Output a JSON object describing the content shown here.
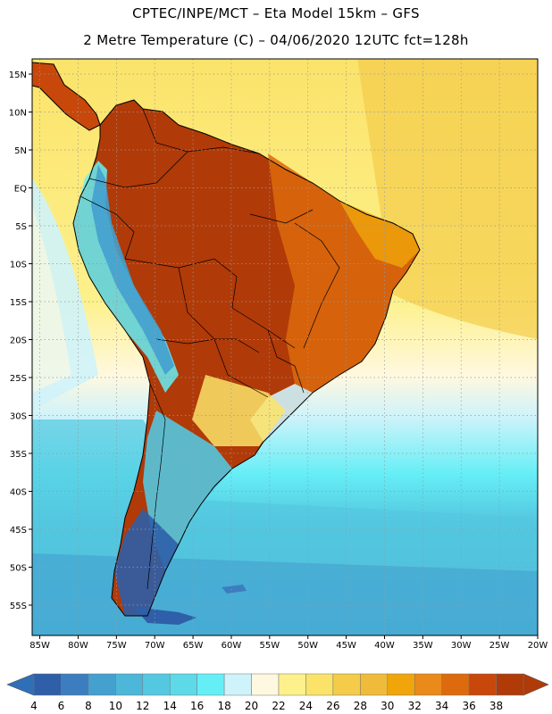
{
  "title": {
    "line1": "CPTEC/INPE/MCT  –   Eta Model 15km  –  GFS",
    "line2": "2 Metre Temperature (C)  –  04/06/2020  12UTC  fct=128h"
  },
  "map": {
    "lon_range": [
      -86,
      -20
    ],
    "lat_range": [
      -59,
      17
    ],
    "lon_ticks": [
      {
        "value": -85,
        "label": "85W"
      },
      {
        "value": -80,
        "label": "80W"
      },
      {
        "value": -75,
        "label": "75W"
      },
      {
        "value": -70,
        "label": "70W"
      },
      {
        "value": -65,
        "label": "65W"
      },
      {
        "value": -60,
        "label": "60W"
      },
      {
        "value": -55,
        "label": "55W"
      },
      {
        "value": -50,
        "label": "50W"
      },
      {
        "value": -45,
        "label": "45W"
      },
      {
        "value": -40,
        "label": "40W"
      },
      {
        "value": -35,
        "label": "35W"
      },
      {
        "value": -30,
        "label": "30W"
      },
      {
        "value": -25,
        "label": "25W"
      },
      {
        "value": -20,
        "label": "20W"
      }
    ],
    "lat_ticks": [
      {
        "value": 15,
        "label": "15N"
      },
      {
        "value": 10,
        "label": "10N"
      },
      {
        "value": 5,
        "label": "5N"
      },
      {
        "value": 0,
        "label": "EQ"
      },
      {
        "value": -5,
        "label": "5S"
      },
      {
        "value": -10,
        "label": "10S"
      },
      {
        "value": -15,
        "label": "15S"
      },
      {
        "value": -20,
        "label": "20S"
      },
      {
        "value": -25,
        "label": "25S"
      },
      {
        "value": -30,
        "label": "30S"
      },
      {
        "value": -35,
        "label": "35S"
      },
      {
        "value": -40,
        "label": "40S"
      },
      {
        "value": -45,
        "label": "45S"
      },
      {
        "value": -50,
        "label": "50S"
      },
      {
        "value": -55,
        "label": "55S"
      }
    ]
  },
  "colorbar": {
    "labels": [
      "4",
      "6",
      "8",
      "10",
      "12",
      "14",
      "16",
      "18",
      "20",
      "22",
      "24",
      "26",
      "28",
      "30",
      "32",
      "34",
      "36",
      "38"
    ],
    "colors": [
      "#2e5fa8",
      "#3c7dbf",
      "#43a0cf",
      "#4cb7d8",
      "#54c8e0",
      "#5dd9e8",
      "#66eef6",
      "#cff3fa",
      "#fff8e0",
      "#fdf18c",
      "#fbe36a",
      "#f4cc4a",
      "#f0bb3a",
      "#f0a60b",
      "#e98a1a",
      "#dd6a0c",
      "#c8470a",
      "#b03a08"
    ],
    "low_color": "#2f6fb8",
    "high_color": "#b03a08"
  }
}
